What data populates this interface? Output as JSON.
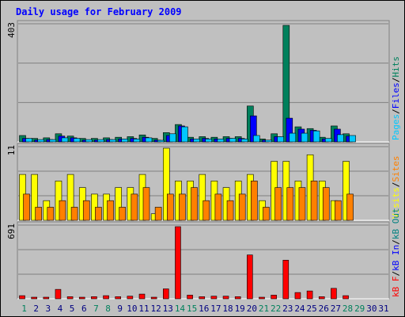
{
  "title": "Daily usage for February 2009",
  "colors": {
    "hits": "#00805c",
    "files": "#0000ff",
    "pages": "#00c8ff",
    "visits": "#ffff00",
    "sites": "#ff8000",
    "kbin": "#0000ff",
    "kbout": "#008080",
    "kbf": "#ff0000",
    "weekend": "#00805c",
    "weekday": "#000080",
    "title": "#0000ff"
  },
  "chart_data": [
    {
      "type": "bar",
      "panel": "hits-files-pages",
      "ymax_label": "403",
      "ymax": 403,
      "legend": [
        {
          "text": "Pages",
          "color_key": "pages"
        },
        {
          "text": "/",
          "color_key": "sep"
        },
        {
          "text": "Files",
          "color_key": "files"
        },
        {
          "text": "/",
          "color_key": "sep"
        },
        {
          "text": "Hits",
          "color_key": "hits"
        }
      ],
      "series": [
        {
          "name": "Hits",
          "color_key": "hits",
          "values": [
            22,
            12,
            14,
            28,
            20,
            12,
            12,
            14,
            16,
            18,
            24,
            12,
            32,
            60,
            16,
            18,
            16,
            18,
            18,
            124,
            10,
            28,
            403,
            52,
            46,
            16,
            55,
            28,
            0,
            0,
            0
          ]
        },
        {
          "name": "Files",
          "color_key": "files",
          "values": [
            12,
            6,
            8,
            20,
            14,
            6,
            6,
            8,
            10,
            12,
            16,
            6,
            22,
            55,
            10,
            12,
            10,
            12,
            12,
            90,
            6,
            18,
            82,
            44,
            40,
            10,
            44,
            20,
            0,
            0,
            0
          ]
        },
        {
          "name": "Pages",
          "color_key": "pages",
          "values": [
            12,
            8,
            8,
            14,
            12,
            8,
            8,
            8,
            10,
            10,
            14,
            4,
            28,
            52,
            10,
            10,
            10,
            12,
            10,
            22,
            6,
            18,
            30,
            30,
            38,
            12,
            25,
            22,
            0,
            0,
            0
          ]
        }
      ]
    },
    {
      "type": "bar",
      "panel": "visits-sites",
      "ymax_label": "11",
      "ymax": 11,
      "legend": [
        {
          "text": "Visits",
          "color_key": "visits"
        },
        {
          "text": "/",
          "color_key": "sep"
        },
        {
          "text": "Sites",
          "color_key": "sites"
        }
      ],
      "series": [
        {
          "name": "Visits",
          "color_key": "visits",
          "values": [
            7,
            7,
            3,
            6,
            7,
            5,
            4,
            4,
            5,
            5,
            7,
            1,
            11,
            6,
            6,
            7,
            6,
            5,
            6,
            7,
            3,
            9,
            9,
            6,
            10,
            6,
            3,
            9,
            0,
            0,
            0
          ]
        },
        {
          "name": "Sites",
          "color_key": "sites",
          "values": [
            4,
            2,
            2,
            3,
            2,
            3,
            2,
            3,
            2,
            4,
            5,
            2,
            4,
            4,
            5,
            3,
            4,
            3,
            4,
            6,
            2,
            5,
            5,
            5,
            6,
            5,
            3,
            4,
            0,
            0,
            0
          ]
        }
      ]
    },
    {
      "type": "bar",
      "panel": "kbytes",
      "ymax_label": "691",
      "ymax": 691,
      "legend": [
        {
          "text": "kB F",
          "color_key": "kbf"
        },
        {
          "text": "/",
          "color_key": "sep"
        },
        {
          "text": "kB In",
          "color_key": "kbin"
        },
        {
          "text": "/",
          "color_key": "sep"
        },
        {
          "text": "kB Out",
          "color_key": "kbout"
        }
      ],
      "series": [
        {
          "name": "kB F",
          "color_key": "kbf",
          "values": [
            30,
            15,
            15,
            90,
            20,
            15,
            20,
            30,
            20,
            25,
            45,
            10,
            95,
            691,
            35,
            20,
            25,
            25,
            20,
            420,
            10,
            35,
            370,
            60,
            75,
            20,
            100,
            30,
            0,
            0,
            0
          ]
        }
      ]
    }
  ],
  "x_labels": [
    "1",
    "2",
    "3",
    "4",
    "5",
    "6",
    "7",
    "8",
    "9",
    "10",
    "11",
    "12",
    "13",
    "14",
    "15",
    "16",
    "17",
    "18",
    "19",
    "20",
    "21",
    "22",
    "23",
    "24",
    "25",
    "26",
    "27",
    "28",
    "29",
    "30",
    "31"
  ],
  "weekend_days": [
    1,
    7,
    8,
    14,
    15,
    21,
    22,
    28,
    29
  ]
}
